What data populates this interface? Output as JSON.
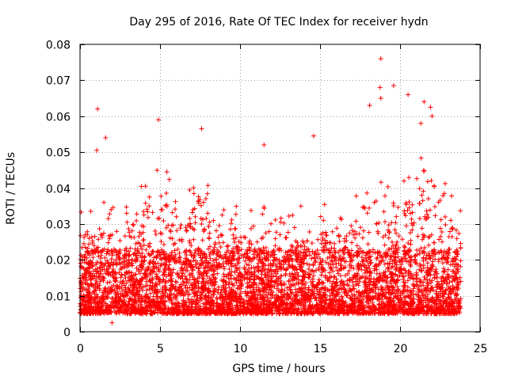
{
  "chart_data": {
    "type": "scatter",
    "title": "Day 295 of 2016, Rate Of TEC Index for receiver hydn",
    "xlabel": "GPS time / hours",
    "ylabel": "ROTI / TECUs",
    "xlim": [
      0,
      25
    ],
    "ylim": [
      0,
      0.08
    ],
    "xticks": [
      0,
      5,
      10,
      15,
      20,
      25
    ],
    "xtick_labels": [
      "0",
      "5",
      "10",
      "15",
      "20",
      "25"
    ],
    "yticks": [
      0,
      0.01,
      0.02,
      0.03,
      0.04,
      0.05,
      0.06,
      0.07,
      0.08
    ],
    "ytick_labels": [
      "0",
      "0.01",
      "0.02",
      "0.03",
      "0.04",
      "0.05",
      "0.06",
      "0.07",
      "0.08"
    ],
    "grid": true,
    "marker": "+",
    "color": "#ff0000",
    "data_x_range": [
      0,
      23.8
    ],
    "series": [
      {
        "name": "ROTI",
        "note": "dense cloud of ~0.003-0.03 values across the day with spikes; notable outliers listed",
        "outliers": [
          {
            "x": 1.1,
            "y": 0.062
          },
          {
            "x": 1.05,
            "y": 0.0505
          },
          {
            "x": 1.6,
            "y": 0.054
          },
          {
            "x": 4.9,
            "y": 0.059
          },
          {
            "x": 7.6,
            "y": 0.0565
          },
          {
            "x": 11.5,
            "y": 0.052
          },
          {
            "x": 14.6,
            "y": 0.0545
          },
          {
            "x": 18.1,
            "y": 0.063
          },
          {
            "x": 18.8,
            "y": 0.076
          },
          {
            "x": 18.75,
            "y": 0.068
          },
          {
            "x": 18.8,
            "y": 0.065
          },
          {
            "x": 19.6,
            "y": 0.0685
          },
          {
            "x": 20.5,
            "y": 0.066
          },
          {
            "x": 21.5,
            "y": 0.064
          },
          {
            "x": 21.9,
            "y": 0.0625
          },
          {
            "x": 22.0,
            "y": 0.06
          },
          {
            "x": 21.3,
            "y": 0.058
          },
          {
            "x": 2.0,
            "y": 0.0025
          }
        ]
      }
    ]
  }
}
